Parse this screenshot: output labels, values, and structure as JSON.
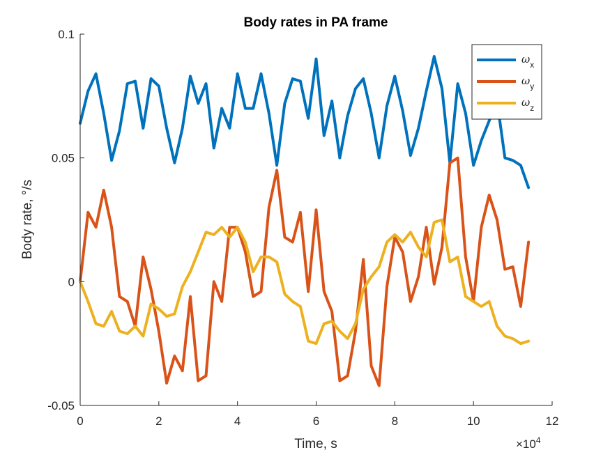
{
  "chart_data": {
    "type": "line",
    "title": "Body rates in PA frame",
    "xlabel": "Time, s",
    "ylabel": "Body rate, °/s",
    "x_exponent_label": "×10",
    "x_exponent_power": "4",
    "xlim": [
      0,
      120000
    ],
    "ylim": [
      -0.05,
      0.1
    ],
    "x_ticks": [
      0,
      20000,
      40000,
      60000,
      80000,
      100000,
      120000
    ],
    "x_tick_labels": [
      "0",
      "2",
      "4",
      "6",
      "8",
      "10",
      "12"
    ],
    "y_ticks": [
      -0.05,
      0,
      0.05,
      0.1
    ],
    "y_tick_labels": [
      "-0.05",
      "0",
      "0.05",
      "0.1"
    ],
    "grid": false,
    "legend_position": "top-right",
    "series": [
      {
        "name": "ω",
        "subscript": "x",
        "color": "#0072BD",
        "x": [
          0,
          2000,
          4000,
          6000,
          8000,
          10000,
          12000,
          14000,
          16000,
          18000,
          20000,
          22000,
          24000,
          26000,
          28000,
          30000,
          32000,
          34000,
          36000,
          38000,
          40000,
          42000,
          44000,
          46000,
          48000,
          50000,
          52000,
          54000,
          56000,
          58000,
          60000,
          62000,
          64000,
          66000,
          68000,
          70000,
          72000,
          74000,
          76000,
          78000,
          80000,
          82000,
          84000,
          86000,
          88000,
          90000,
          92000,
          94000,
          96000,
          98000,
          100000,
          102000,
          104000,
          106000,
          108000,
          110000,
          112000,
          114000
        ],
        "y": [
          0.064,
          0.077,
          0.084,
          0.068,
          0.049,
          0.061,
          0.08,
          0.081,
          0.062,
          0.082,
          0.079,
          0.062,
          0.048,
          0.062,
          0.083,
          0.072,
          0.08,
          0.054,
          0.07,
          0.062,
          0.084,
          0.07,
          0.07,
          0.084,
          0.068,
          0.047,
          0.072,
          0.082,
          0.081,
          0.066,
          0.09,
          0.059,
          0.073,
          0.05,
          0.067,
          0.078,
          0.082,
          0.068,
          0.05,
          0.071,
          0.083,
          0.069,
          0.051,
          0.062,
          0.077,
          0.091,
          0.078,
          0.048,
          0.08,
          0.068,
          0.047,
          0.057,
          0.065,
          0.073,
          0.05,
          0.049,
          0.047,
          0.038
        ]
      },
      {
        "name": "ω",
        "subscript": "y",
        "color": "#D95319",
        "x": [
          0,
          2000,
          4000,
          6000,
          8000,
          10000,
          12000,
          14000,
          16000,
          18000,
          20000,
          22000,
          24000,
          26000,
          28000,
          30000,
          32000,
          34000,
          36000,
          38000,
          40000,
          42000,
          44000,
          46000,
          48000,
          50000,
          52000,
          54000,
          56000,
          58000,
          60000,
          62000,
          64000,
          66000,
          68000,
          70000,
          72000,
          74000,
          76000,
          78000,
          80000,
          82000,
          84000,
          86000,
          88000,
          90000,
          92000,
          94000,
          96000,
          98000,
          100000,
          102000,
          104000,
          106000,
          108000,
          110000,
          112000,
          114000
        ],
        "y": [
          0.0,
          0.028,
          0.022,
          0.037,
          0.022,
          -0.006,
          -0.008,
          -0.018,
          0.01,
          -0.003,
          -0.02,
          -0.041,
          -0.03,
          -0.036,
          -0.006,
          -0.04,
          -0.038,
          0.0,
          -0.008,
          0.022,
          0.022,
          0.012,
          -0.006,
          -0.004,
          0.03,
          0.045,
          0.018,
          0.016,
          0.028,
          -0.004,
          0.029,
          -0.004,
          -0.012,
          -0.04,
          -0.038,
          -0.02,
          0.009,
          -0.034,
          -0.042,
          -0.002,
          0.018,
          0.012,
          -0.008,
          0.002,
          0.022,
          -0.001,
          0.014,
          0.048,
          0.05,
          0.01,
          -0.008,
          0.022,
          0.035,
          0.025,
          0.005,
          0.006,
          -0.01,
          0.016
        ]
      },
      {
        "name": "ω",
        "subscript": "z",
        "color": "#EDB120",
        "x": [
          0,
          2000,
          4000,
          6000,
          8000,
          10000,
          12000,
          14000,
          16000,
          18000,
          20000,
          22000,
          24000,
          26000,
          28000,
          30000,
          32000,
          34000,
          36000,
          38000,
          40000,
          42000,
          44000,
          46000,
          48000,
          50000,
          52000,
          54000,
          56000,
          58000,
          60000,
          62000,
          64000,
          66000,
          68000,
          70000,
          72000,
          74000,
          76000,
          78000,
          80000,
          82000,
          84000,
          86000,
          88000,
          90000,
          92000,
          94000,
          96000,
          98000,
          100000,
          102000,
          104000,
          106000,
          108000,
          110000,
          112000,
          114000
        ],
        "y": [
          0.0,
          -0.008,
          -0.017,
          -0.018,
          -0.012,
          -0.02,
          -0.021,
          -0.018,
          -0.022,
          -0.009,
          -0.011,
          -0.014,
          -0.013,
          -0.002,
          0.004,
          0.012,
          0.02,
          0.019,
          0.022,
          0.018,
          0.022,
          0.016,
          0.004,
          0.01,
          0.01,
          0.008,
          -0.005,
          -0.008,
          -0.01,
          -0.024,
          -0.025,
          -0.017,
          -0.016,
          -0.02,
          -0.023,
          -0.017,
          -0.003,
          0.002,
          0.006,
          0.016,
          0.019,
          0.016,
          0.02,
          0.014,
          0.01,
          0.024,
          0.025,
          0.008,
          0.01,
          -0.006,
          -0.008,
          -0.01,
          -0.008,
          -0.018,
          -0.022,
          -0.023,
          -0.025,
          -0.024
        ]
      }
    ]
  }
}
